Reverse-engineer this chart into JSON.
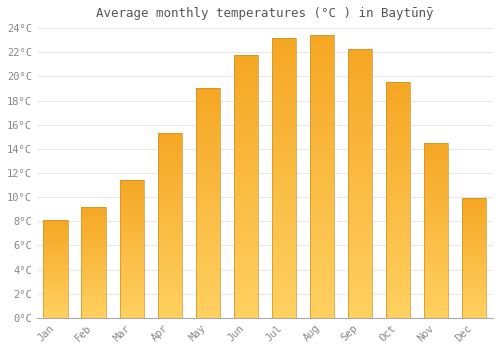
{
  "title": "Average monthly temperatures (°C ) in Baytūnȳ",
  "months": [
    "Jan",
    "Feb",
    "Mar",
    "Apr",
    "May",
    "Jun",
    "Jul",
    "Aug",
    "Sep",
    "Oct",
    "Nov",
    "Dec"
  ],
  "values": [
    8.1,
    9.2,
    11.4,
    15.3,
    19.0,
    21.8,
    23.2,
    23.4,
    22.3,
    19.5,
    14.5,
    9.9
  ],
  "bar_color_top": "#F5A623",
  "bar_color_bottom": "#FFD060",
  "bar_edge_color": "#C8922A",
  "ylim": [
    0,
    24
  ],
  "ytick_step": 2,
  "background_color": "#ffffff",
  "grid_color": "#e8e8e8",
  "font_color": "#888888",
  "title_fontsize": 9,
  "tick_fontsize": 7.5
}
